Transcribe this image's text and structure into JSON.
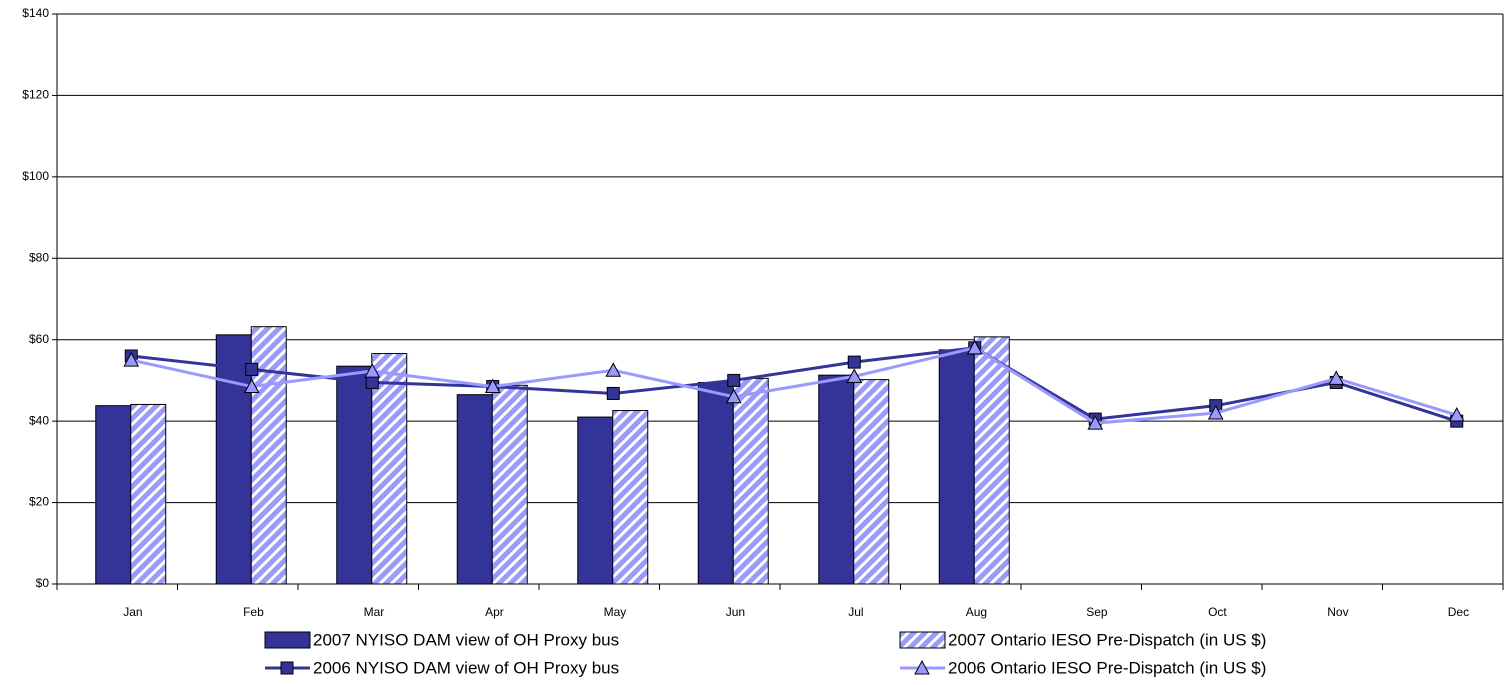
{
  "chart_data": {
    "type": "bar",
    "categories": [
      "Jan",
      "Feb",
      "Mar",
      "Apr",
      "May",
      "Jun",
      "Jul",
      "Aug",
      "Sep",
      "Oct",
      "Nov",
      "Dec"
    ],
    "series": [
      {
        "name": "2007 NYISO DAM view of OH Proxy bus",
        "type": "bar",
        "color": "#333399",
        "values": [
          43.8,
          61.2,
          53.5,
          46.5,
          41,
          49.5,
          51.3,
          57.5,
          null,
          null,
          null,
          null
        ]
      },
      {
        "name": "2007 Ontario IESO Pre-Dispatch (in US $)",
        "type": "bar",
        "color": "#9999ff",
        "pattern": "diagonal-hatch",
        "values": [
          44.1,
          63.2,
          56.6,
          48.8,
          42.6,
          50.5,
          50.2,
          60.7,
          null,
          null,
          null,
          null
        ]
      },
      {
        "name": "2006 NYISO DAM view of OH Proxy bus",
        "type": "line",
        "color": "#333399",
        "marker": "square",
        "values": [
          56,
          52.7,
          49.5,
          48.5,
          46.8,
          50,
          54.5,
          58,
          40.5,
          43.8,
          49.5,
          40
        ]
      },
      {
        "name": "2006 Ontario IESO Pre-Dispatch (in US $)",
        "type": "line",
        "color": "#9999ff",
        "marker": "triangle",
        "values": [
          55,
          48.5,
          52.3,
          48.5,
          52.5,
          46,
          51,
          58,
          39.5,
          42,
          50.5,
          41.5
        ]
      }
    ],
    "ylim": [
      0,
      140
    ],
    "yticks": [
      {
        "value": 0,
        "label": "$0"
      },
      {
        "value": 20,
        "label": "$20"
      },
      {
        "value": 40,
        "label": "$40"
      },
      {
        "value": 60,
        "label": "$60"
      },
      {
        "value": 80,
        "label": "$80"
      },
      {
        "value": 100,
        "label": "$100"
      },
      {
        "value": 120,
        "label": "$120"
      },
      {
        "value": 140,
        "label": "$140"
      }
    ],
    "grid": true,
    "legend": "bottom"
  }
}
